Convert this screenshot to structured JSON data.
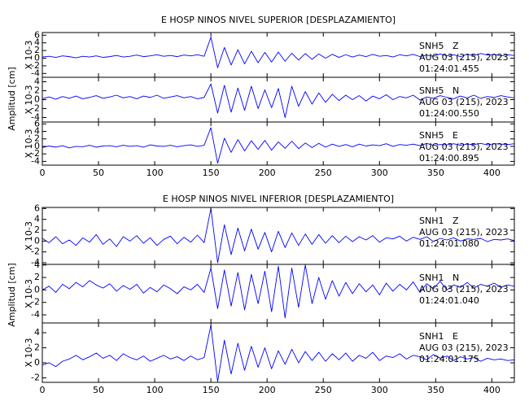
{
  "chart_data": [
    {
      "type": "line",
      "title": "E HOSP NINOS NIVEL SUPERIOR [DESPLAZAMIENTO]",
      "ylabel": "Amplitud [cm]",
      "x": [
        0,
        6,
        12,
        18,
        24,
        30,
        36,
        42,
        48,
        54,
        60,
        66,
        72,
        78,
        84,
        90,
        96,
        102,
        108,
        114,
        120,
        126,
        132,
        138,
        144,
        150,
        156,
        162,
        168,
        174,
        180,
        186,
        192,
        198,
        204,
        210,
        216,
        222,
        228,
        234,
        240,
        246,
        252,
        258,
        264,
        270,
        276,
        282,
        288,
        294,
        300,
        306,
        312,
        318,
        324,
        330,
        336,
        342,
        348,
        354,
        360,
        366,
        372,
        378,
        384,
        390,
        396,
        402,
        408,
        414,
        420
      ],
      "xlim": [
        0,
        420
      ],
      "xticks": [
        0,
        50,
        100,
        150,
        200,
        250,
        300,
        350,
        400
      ],
      "series": [
        {
          "name": "SNH5   Z",
          "date": "AUG 03 (215), 2023",
          "time": "01:24:01.455",
          "scale_label": "X 10-3",
          "color": "#0000ff",
          "ylim": [
            -5,
            6.7
          ],
          "yticks": [
            -4,
            -2,
            0,
            2,
            4,
            6
          ],
          "values": [
            0.3,
            0.5,
            0.2,
            0.6,
            0.4,
            0.1,
            0.5,
            0.3,
            0.6,
            0.2,
            0.4,
            0.7,
            0.3,
            0.5,
            0.8,
            0.4,
            0.6,
            0.9,
            0.5,
            0.7,
            0.4,
            0.8,
            0.6,
            0.9,
            0.5,
            5.5,
            -2.5,
            2.8,
            -1.8,
            2.2,
            -1.5,
            1.8,
            -1.2,
            1.5,
            -1.0,
            1.6,
            -0.8,
            1.3,
            -0.5,
            1.2,
            -0.3,
            1.1,
            0.0,
            1.0,
            0.2,
            0.9,
            0.3,
            0.8,
            0.4,
            1.0,
            0.5,
            0.7,
            0.3,
            0.9,
            0.6,
            1.0,
            0.4,
            0.8,
            0.5,
            1.1,
            0.6,
            0.9,
            0.4,
            1.0,
            0.7,
            1.2,
            0.8,
            1.0,
            0.6,
            0.9,
            0.7
          ]
        },
        {
          "name": "SNH5   N",
          "date": "AUG 03 (215), 2023",
          "time": "01:24:00.550",
          "scale_label": "X 10-3",
          "color": "#0000ff",
          "ylim": [
            -5,
            5
          ],
          "yticks": [
            -4,
            -2,
            0,
            2,
            4
          ],
          "values": [
            0.2,
            0.6,
            0.1,
            0.7,
            0.3,
            0.8,
            0.2,
            0.5,
            0.9,
            0.3,
            0.6,
            1.0,
            0.4,
            0.7,
            0.2,
            0.8,
            0.5,
            1.0,
            0.3,
            0.6,
            0.9,
            0.4,
            0.7,
            0.2,
            0.5,
            3.5,
            -3.0,
            3.2,
            -2.8,
            2.6,
            -2.4,
            3.0,
            -2.0,
            2.2,
            -1.8,
            2.5,
            -4.0,
            3.0,
            -1.5,
            1.8,
            -1.0,
            1.5,
            -0.6,
            1.2,
            -0.2,
            1.0,
            0.0,
            0.9,
            -0.3,
            0.8,
            0.2,
            1.1,
            0.0,
            0.7,
            0.4,
            1.0,
            -0.1,
            0.6,
            0.3,
            0.9,
            0.5,
            0.2,
            0.8,
            0.4,
            1.0,
            0.3,
            0.7,
            0.5,
            0.9,
            0.6,
            0.4
          ]
        },
        {
          "name": "SNH5   E",
          "date": "AUG 03 (215), 2023",
          "time": "01:24:00.895",
          "scale_label": "X 10-3",
          "color": "#0000ff",
          "ylim": [
            -5,
            6.5
          ],
          "yticks": [
            -4,
            -2,
            0,
            2,
            4,
            6
          ],
          "values": [
            -0.3,
            0.1,
            -0.2,
            0.2,
            -0.4,
            0.0,
            -0.1,
            0.3,
            -0.2,
            0.1,
            0.2,
            -0.1,
            0.3,
            0.0,
            0.2,
            -0.2,
            0.4,
            0.1,
            0.0,
            0.3,
            -0.1,
            0.2,
            0.4,
            0.0,
            0.3,
            5.0,
            -4.5,
            2.2,
            -1.6,
            1.8,
            -1.2,
            1.5,
            -0.8,
            1.6,
            -1.0,
            1.2,
            -0.5,
            1.4,
            -0.6,
            0.9,
            -0.3,
            0.8,
            -0.2,
            0.6,
            0.0,
            0.5,
            -0.1,
            0.6,
            0.1,
            0.4,
            0.2,
            0.7,
            0.0,
            0.5,
            0.3,
            0.6,
            0.2,
            0.8,
            0.3,
            0.5,
            0.4,
            0.7,
            0.3,
            0.6,
            0.5,
            0.8,
            0.4,
            0.7,
            0.6,
            0.5,
            0.7
          ]
        }
      ]
    },
    {
      "type": "line",
      "title": "E HOSP NINOS NIVEL INFERIOR [DESPLAZAMIENTO]",
      "ylabel": "Amplitud [cm]",
      "x": [
        0,
        6,
        12,
        18,
        24,
        30,
        36,
        42,
        48,
        54,
        60,
        66,
        72,
        78,
        84,
        90,
        96,
        102,
        108,
        114,
        120,
        126,
        132,
        138,
        144,
        150,
        156,
        162,
        168,
        174,
        180,
        186,
        192,
        198,
        204,
        210,
        216,
        222,
        228,
        234,
        240,
        246,
        252,
        258,
        264,
        270,
        276,
        282,
        288,
        294,
        300,
        306,
        312,
        318,
        324,
        330,
        336,
        342,
        348,
        354,
        360,
        366,
        372,
        378,
        384,
        390,
        396,
        402,
        408,
        414,
        420
      ],
      "xlim": [
        0,
        420
      ],
      "xticks": [
        0,
        50,
        100,
        150,
        200,
        250,
        300,
        350,
        400
      ],
      "series": [
        {
          "name": "SNH1   Z",
          "date": "AUG 03 (215), 2023",
          "time": "01:24:01.080",
          "scale_label": "X 10-3",
          "color": "#0000ff",
          "ylim": [
            -4.3,
            6.2
          ],
          "yticks": [
            -4,
            -2,
            0,
            2,
            4,
            6
          ],
          "values": [
            0.5,
            -0.3,
            0.8,
            -0.5,
            0.2,
            -0.8,
            0.6,
            -0.2,
            1.2,
            -0.6,
            0.4,
            -1.0,
            0.8,
            0.0,
            1.0,
            -0.4,
            0.6,
            -0.8,
            0.3,
            0.9,
            -0.5,
            0.7,
            -0.2,
            1.1,
            -0.3,
            6.0,
            -4.0,
            3.0,
            -2.5,
            2.4,
            -1.8,
            2.2,
            -1.5,
            1.6,
            -2.0,
            1.8,
            -1.2,
            1.5,
            -0.8,
            1.3,
            -0.6,
            1.2,
            -0.4,
            1.0,
            -0.3,
            0.9,
            -0.1,
            0.8,
            0.2,
            1.0,
            -0.2,
            0.6,
            0.4,
            0.9,
            0.0,
            0.7,
            0.3,
            0.8,
            -0.1,
            0.5,
            0.2,
            0.6,
            0.0,
            0.4,
            0.3,
            0.5,
            -0.1,
            0.3,
            0.2,
            0.4,
            0.1
          ]
        },
        {
          "name": "SNH1   N",
          "date": "AUG 03 (215), 2023",
          "time": "01:24:01.040",
          "scale_label": "X 10-3",
          "color": "#0000ff",
          "ylim": [
            -5.3,
            4.1
          ],
          "yticks": [
            -4,
            -2,
            0,
            2,
            4
          ],
          "values": [
            0.0,
            0.6,
            -0.4,
            0.9,
            0.2,
            1.2,
            0.5,
            1.5,
            0.8,
            0.3,
            1.0,
            -0.2,
            0.7,
            0.1,
            0.9,
            -0.5,
            0.4,
            -0.3,
            0.8,
            0.2,
            -0.6,
            0.5,
            0.0,
            0.9,
            -0.4,
            3.5,
            -3.0,
            3.2,
            -2.6,
            2.8,
            -3.2,
            2.5,
            -2.2,
            3.0,
            -3.5,
            3.8,
            -4.5,
            3.5,
            -2.8,
            4.0,
            -2.2,
            2.0,
            -1.5,
            1.5,
            -1.0,
            1.2,
            -0.6,
            1.0,
            -0.3,
            0.8,
            -0.8,
            1.1,
            -0.2,
            0.9,
            0.0,
            1.3,
            -0.4,
            1.0,
            0.2,
            1.4,
            0.0,
            0.8,
            0.4,
            1.2,
            0.3,
            0.9,
            0.6,
            1.1,
            0.4,
            0.8,
            0.6
          ]
        },
        {
          "name": "SNH1   E",
          "date": "AUG 03 (215), 2023",
          "time": "01:24:01.175",
          "scale_label": "X 10-3",
          "color": "#0000ff",
          "ylim": [
            -2.6,
            5.3
          ],
          "yticks": [
            -2,
            0,
            2,
            4
          ],
          "values": [
            -0.3,
            0.0,
            -0.5,
            0.2,
            0.5,
            1.0,
            0.4,
            0.8,
            1.3,
            0.6,
            1.0,
            0.3,
            1.2,
            0.7,
            0.4,
            0.9,
            0.2,
            0.6,
            1.0,
            0.5,
            0.8,
            0.3,
            0.9,
            0.4,
            0.7,
            5.0,
            -2.5,
            3.0,
            -1.5,
            2.6,
            -1.0,
            2.2,
            -0.6,
            2.0,
            -0.8,
            1.6,
            -0.2,
            1.8,
            0.0,
            1.5,
            0.3,
            1.4,
            0.2,
            1.2,
            0.4,
            1.3,
            0.2,
            1.0,
            0.6,
            1.4,
            0.3,
            0.9,
            0.7,
            1.2,
            0.5,
            1.0,
            0.8,
            0.4,
            1.1,
            0.6,
            0.9,
            0.3,
            0.8,
            0.5,
            0.7,
            0.2,
            0.6,
            0.4,
            0.5,
            0.3,
            0.4
          ]
        }
      ]
    }
  ]
}
